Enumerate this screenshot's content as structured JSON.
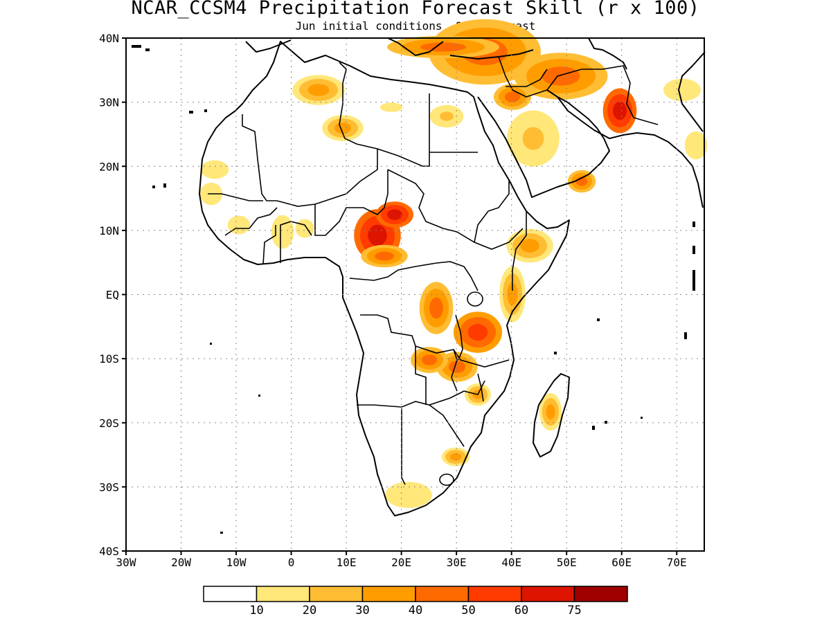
{
  "header": {
    "title": "NCAR_CCSM4 Precipitation Forecast Skill (r x 100)",
    "subtitle": "Jun initial conditions  Oct Forecast"
  },
  "axes": {
    "lat_ticks": [
      "40N",
      "30N",
      "20N",
      "10N",
      "EQ",
      "10S",
      "20S",
      "30S",
      "40S"
    ],
    "lon_ticks": [
      "30W",
      "20W",
      "10W",
      "0",
      "10E",
      "20E",
      "30E",
      "40E",
      "50E",
      "60E",
      "70E"
    ],
    "lon_range": [
      -30,
      75
    ],
    "lat_range": [
      -40,
      40
    ],
    "gridlines": "dotted"
  },
  "colorbar": {
    "labels": [
      "10",
      "20",
      "30",
      "40",
      "50",
      "60",
      "75"
    ],
    "colors": [
      "#ffffff",
      "#ffe77a",
      "#ffbd33",
      "#ff9d00",
      "#ff6a00",
      "#ff3b00",
      "#dd1400",
      "#a00000"
    ]
  },
  "skill_regions": [
    {
      "name": "northwest-algeria",
      "level": 3
    },
    {
      "name": "central-algeria",
      "level": 3
    },
    {
      "name": "northern-libya",
      "level": 1
    },
    {
      "name": "southern-egypt",
      "level": 2
    },
    {
      "name": "eastern-mediterranean",
      "level": 4
    },
    {
      "name": "iraq-iran",
      "level": 4
    },
    {
      "name": "saudi-arabia",
      "level": 2
    },
    {
      "name": "southern-iran",
      "level": 6
    },
    {
      "name": "oman-yemen",
      "level": 4
    },
    {
      "name": "pakistan-india",
      "level": 1
    },
    {
      "name": "mauritania",
      "level": 1
    },
    {
      "name": "senegal-guinea",
      "level": 1
    },
    {
      "name": "west-africa-coast",
      "level": 1
    },
    {
      "name": "cameroon-chad",
      "level": 6
    },
    {
      "name": "central-african-republic",
      "level": 4
    },
    {
      "name": "ethiopia",
      "level": 3
    },
    {
      "name": "kenya-somalia",
      "level": 3
    },
    {
      "name": "eastern-drc",
      "level": 4
    },
    {
      "name": "tanzania",
      "level": 5
    },
    {
      "name": "zambia",
      "level": 4
    },
    {
      "name": "mozambique",
      "level": 3
    },
    {
      "name": "madagascar",
      "level": 3
    },
    {
      "name": "south-africa-east",
      "level": 3
    },
    {
      "name": "south-africa-west",
      "level": 1
    }
  ]
}
